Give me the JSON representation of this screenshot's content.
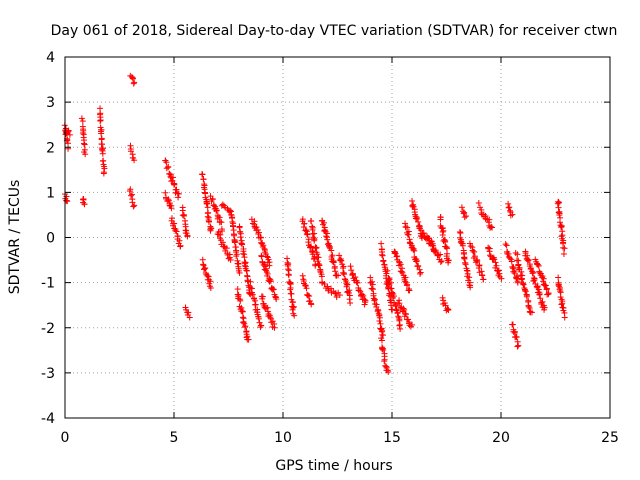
{
  "chart_data": {
    "type": "scatter",
    "title": "Day 061 of 2018, Sidereal Day-to-day VTEC variation (SDTVAR) for receiver ctwn",
    "xlabel": "GPS time / hours",
    "ylabel": "SDTVAR / TECUs",
    "xlim": [
      0,
      25
    ],
    "ylim": [
      -4,
      4
    ],
    "xticks": [
      "0",
      "5",
      "10",
      "15",
      "20",
      "25"
    ],
    "yticks": [
      "-4",
      "-3",
      "-2",
      "-1",
      "0",
      "1",
      "2",
      "3",
      "4"
    ],
    "grid": true,
    "marker": "+",
    "series_color": "#ff0000",
    "segments": [
      {
        "x0": 0.0,
        "x1": 0.15,
        "y0": 2.5,
        "y1": 2.0
      },
      {
        "x0": 0.05,
        "x1": 0.2,
        "y0": 2.4,
        "y1": 2.3
      },
      {
        "x0": 0.0,
        "x1": 0.1,
        "y0": 0.9,
        "y1": 0.85
      },
      {
        "x0": 0.8,
        "x1": 0.9,
        "y0": 2.6,
        "y1": 1.9
      },
      {
        "x0": 0.8,
        "x1": 0.9,
        "y0": 0.85,
        "y1": 0.75
      },
      {
        "x0": 1.6,
        "x1": 1.8,
        "y0": 2.8,
        "y1": 1.45
      },
      {
        "x0": 3.0,
        "x1": 3.2,
        "y0": 3.6,
        "y1": 3.4
      },
      {
        "x0": 3.0,
        "x1": 3.15,
        "y0": 2.0,
        "y1": 1.7
      },
      {
        "x0": 3.0,
        "x1": 3.15,
        "y0": 1.05,
        "y1": 0.7
      },
      {
        "x0": 4.6,
        "x1": 5.2,
        "y0": 1.7,
        "y1": 0.9
      },
      {
        "x0": 4.6,
        "x1": 4.9,
        "y0": 0.95,
        "y1": 0.6
      },
      {
        "x0": 4.9,
        "x1": 5.3,
        "y0": 0.4,
        "y1": -0.2
      },
      {
        "x0": 5.4,
        "x1": 5.6,
        "y0": 0.6,
        "y1": 0.0
      },
      {
        "x0": 5.5,
        "x1": 5.7,
        "y0": -1.6,
        "y1": -1.75
      },
      {
        "x0": 6.3,
        "x1": 6.7,
        "y0": 1.4,
        "y1": 0.1
      },
      {
        "x0": 6.3,
        "x1": 6.7,
        "y0": -0.55,
        "y1": -1.1
      },
      {
        "x0": 6.7,
        "x1": 7.2,
        "y0": 0.9,
        "y1": 0.2
      },
      {
        "x0": 7.0,
        "x1": 7.6,
        "y0": 0.1,
        "y1": -0.5
      },
      {
        "x0": 7.2,
        "x1": 7.6,
        "y0": 0.7,
        "y1": 0.55
      },
      {
        "x0": 7.6,
        "x1": 8.0,
        "y0": 0.6,
        "y1": -0.8
      },
      {
        "x0": 7.9,
        "x1": 8.4,
        "y0": -1.2,
        "y1": -2.3
      },
      {
        "x0": 8.0,
        "x1": 8.5,
        "y0": 0.2,
        "y1": -1.3
      },
      {
        "x0": 8.5,
        "x1": 9.0,
        "y0": -1.0,
        "y1": -2.0
      },
      {
        "x0": 8.6,
        "x1": 9.4,
        "y0": 0.4,
        "y1": -0.6
      },
      {
        "x0": 9.0,
        "x1": 9.7,
        "y0": -0.4,
        "y1": -1.4
      },
      {
        "x0": 9.0,
        "x1": 9.6,
        "y0": -1.3,
        "y1": -2.0
      },
      {
        "x0": 10.2,
        "x1": 10.5,
        "y0": -0.5,
        "y1": -1.7
      },
      {
        "x0": 10.9,
        "x1": 11.5,
        "y0": 0.4,
        "y1": -0.6
      },
      {
        "x0": 10.9,
        "x1": 11.3,
        "y0": -0.9,
        "y1": -1.5
      },
      {
        "x0": 11.3,
        "x1": 11.8,
        "y0": 0.35,
        "y1": -1.0
      },
      {
        "x0": 11.8,
        "x1": 12.5,
        "y0": 0.4,
        "y1": -0.9
      },
      {
        "x0": 11.9,
        "x1": 12.6,
        "y0": -1.1,
        "y1": -1.3
      },
      {
        "x0": 12.6,
        "x1": 13.1,
        "y0": -0.4,
        "y1": -1.4
      },
      {
        "x0": 13.1,
        "x1": 13.8,
        "y0": -0.7,
        "y1": -1.5
      },
      {
        "x0": 14.0,
        "x1": 14.6,
        "y0": -0.9,
        "y1": -2.2
      },
      {
        "x0": 14.5,
        "x1": 14.8,
        "y0": -2.3,
        "y1": -3.0
      },
      {
        "x0": 14.5,
        "x1": 15.0,
        "y0": -0.2,
        "y1": -1.6
      },
      {
        "x0": 14.8,
        "x1": 15.4,
        "y0": -0.8,
        "y1": -2.0
      },
      {
        "x0": 15.1,
        "x1": 15.8,
        "y0": -0.3,
        "y1": -1.2
      },
      {
        "x0": 15.3,
        "x1": 15.9,
        "y0": -1.4,
        "y1": -2.0
      },
      {
        "x0": 15.6,
        "x1": 16.3,
        "y0": 0.3,
        "y1": -0.8
      },
      {
        "x0": 15.9,
        "x1": 16.4,
        "y0": 0.8,
        "y1": 0.0
      },
      {
        "x0": 16.3,
        "x1": 17.3,
        "y0": 0.2,
        "y1": -0.5
      },
      {
        "x0": 16.6,
        "x1": 17.0,
        "y0": 0.0,
        "y1": -0.3
      },
      {
        "x0": 17.2,
        "x1": 17.6,
        "y0": 0.45,
        "y1": -0.55
      },
      {
        "x0": 17.3,
        "x1": 17.6,
        "y0": -1.4,
        "y1": -1.65
      },
      {
        "x0": 18.2,
        "x1": 18.4,
        "y0": 0.65,
        "y1": 0.45
      },
      {
        "x0": 18.1,
        "x1": 18.6,
        "y0": 0.1,
        "y1": -1.1
      },
      {
        "x0": 18.6,
        "x1": 19.2,
        "y0": -0.2,
        "y1": -0.9
      },
      {
        "x0": 19.0,
        "x1": 19.6,
        "y0": 0.7,
        "y1": 0.2
      },
      {
        "x0": 19.4,
        "x1": 20.0,
        "y0": -0.2,
        "y1": -0.9
      },
      {
        "x0": 20.3,
        "x1": 20.5,
        "y0": 0.75,
        "y1": 0.5
      },
      {
        "x0": 20.2,
        "x1": 20.8,
        "y0": -0.2,
        "y1": -1.0
      },
      {
        "x0": 20.5,
        "x1": 20.8,
        "y0": -1.9,
        "y1": -2.4
      },
      {
        "x0": 20.7,
        "x1": 21.4,
        "y0": -0.4,
        "y1": -1.7
      },
      {
        "x0": 21.1,
        "x1": 22.0,
        "y0": -0.3,
        "y1": -1.6
      },
      {
        "x0": 21.6,
        "x1": 22.2,
        "y0": -0.5,
        "y1": -1.3
      },
      {
        "x0": 22.6,
        "x1": 22.9,
        "y0": 0.85,
        "y1": -0.3
      },
      {
        "x0": 22.6,
        "x1": 22.9,
        "y0": -0.9,
        "y1": -1.75
      }
    ]
  }
}
